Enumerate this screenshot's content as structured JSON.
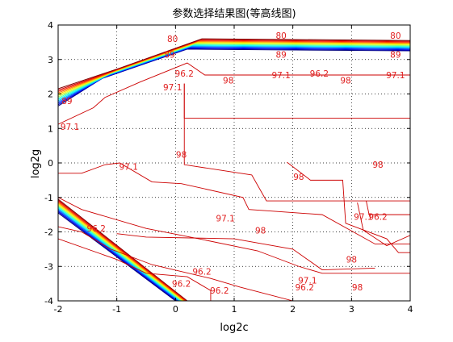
{
  "chart_data": {
    "type": "contour",
    "title": "参数选择结果图(等高线图)",
    "xlabel": "log2c",
    "ylabel": "log2g",
    "xlim": [
      -2,
      4
    ],
    "ylim": [
      -4,
      4
    ],
    "x_ticks": [
      -2,
      -1,
      0,
      1,
      2,
      3,
      4
    ],
    "y_ticks": [
      -4,
      -3,
      -2,
      -1,
      0,
      1,
      2,
      3,
      4
    ],
    "grid": true,
    "colormap": "jet",
    "label_color": "#e02020",
    "upper_band": {
      "levels": 14,
      "left_edge": [
        [
          -2.0,
          1.65
        ],
        [
          -2.0,
          2.15
        ]
      ],
      "ramp_top": [
        [
          -1.25,
          2.45
        ],
        [
          -0.95,
          2.75
        ]
      ],
      "knee": [
        [
          0.2,
          3.3
        ],
        [
          0.45,
          3.6
        ]
      ],
      "right_edge": [
        [
          4.0,
          3.25
        ],
        [
          4.0,
          3.55
        ]
      ]
    },
    "lower_band": {
      "levels": 14,
      "top_start": [
        -2.0,
        -1.05
      ],
      "top_end": [
        0.2,
        -4.0
      ],
      "bottom_start": [
        -2.0,
        -1.45
      ],
      "bottom_end": [
        0.0,
        -4.0
      ]
    },
    "contour_lines": [
      {
        "level": 97.1,
        "points": [
          [
            -2.0,
            1.12
          ],
          [
            -1.4,
            1.6
          ],
          [
            -1.2,
            1.9
          ],
          [
            -0.6,
            2.35
          ],
          [
            0.2,
            2.9
          ],
          [
            0.5,
            2.55
          ],
          [
            4.0,
            2.55
          ]
        ]
      },
      {
        "level": 98,
        "points": [
          [
            0.15,
            2.3
          ],
          [
            0.15,
            1.3
          ],
          [
            4.0,
            1.3
          ]
        ]
      },
      {
        "level": 98,
        "points": [
          [
            0.15,
            2.3
          ],
          [
            0.15,
            -0.05
          ],
          [
            1.3,
            -0.35
          ],
          [
            1.55,
            -1.1
          ],
          [
            4.0,
            -1.1
          ]
        ]
      },
      {
        "level": 97.1,
        "points": [
          [
            -2.0,
            -0.3
          ],
          [
            -1.6,
            -0.3
          ],
          [
            -1.2,
            -0.05
          ],
          [
            -0.95,
            0.0
          ],
          [
            -0.4,
            -0.55
          ],
          [
            0.1,
            -0.6
          ],
          [
            1.15,
            -1.0
          ],
          [
            1.25,
            -1.35
          ],
          [
            2.5,
            -1.5
          ],
          [
            3.4,
            -2.35
          ],
          [
            4.0,
            -2.35
          ]
        ]
      },
      {
        "level": 96.2,
        "points": [
          [
            -2.0,
            -1.0
          ],
          [
            -1.6,
            -1.35
          ],
          [
            -0.5,
            -1.9
          ],
          [
            0.4,
            -2.2
          ],
          [
            1.4,
            -2.55
          ],
          [
            2.1,
            -3.0
          ],
          [
            2.5,
            -3.2
          ],
          [
            4.0,
            -3.2
          ]
        ]
      },
      {
        "level": 97.1,
        "points": [
          [
            -1.0,
            -2.05
          ],
          [
            -0.5,
            -2.15
          ],
          [
            1.0,
            -2.2
          ],
          [
            2.0,
            -2.5
          ],
          [
            2.5,
            -3.1
          ],
          [
            3.4,
            -3.05
          ]
        ]
      },
      {
        "level": 98,
        "points": [
          [
            1.9,
            0.02
          ],
          [
            2.3,
            -0.5
          ],
          [
            2.85,
            -0.5
          ],
          [
            2.9,
            -1.75
          ],
          [
            3.6,
            -2.2
          ],
          [
            3.8,
            -2.6
          ],
          [
            4.0,
            -2.6
          ]
        ]
      },
      {
        "level": 96.2,
        "points": [
          [
            -2.0,
            -1.85
          ],
          [
            -1.6,
            -2.0
          ],
          [
            -1.1,
            -2.5
          ],
          [
            -0.4,
            -2.95
          ],
          [
            0.6,
            -3.35
          ],
          [
            1.1,
            -3.6
          ],
          [
            2.0,
            -4.0
          ]
        ]
      },
      {
        "level": 98,
        "points": [
          [
            -2.0,
            -2.2
          ],
          [
            -1.0,
            -2.8
          ],
          [
            -0.5,
            -3.2
          ],
          [
            0.2,
            -3.3
          ],
          [
            0.6,
            -3.7
          ],
          [
            0.6,
            -4.0
          ]
        ]
      },
      {
        "level": 96.2,
        "points": [
          [
            3.1,
            -1.15
          ],
          [
            3.2,
            -1.95
          ],
          [
            3.6,
            -2.4
          ],
          [
            4.0,
            -2.1
          ]
        ]
      },
      {
        "level": 98,
        "points": [
          [
            3.25,
            -1.1
          ],
          [
            3.3,
            -1.5
          ],
          [
            4.0,
            -1.5
          ]
        ]
      }
    ],
    "labels": [
      {
        "text": "89",
        "x": -1.85,
        "y": 1.8
      },
      {
        "text": "97.1",
        "x": -1.8,
        "y": 1.05
      },
      {
        "text": "89",
        "x": -0.1,
        "y": 3.15
      },
      {
        "text": "80",
        "x": -0.05,
        "y": 3.6
      },
      {
        "text": "97.1",
        "x": -0.05,
        "y": 2.2
      },
      {
        "text": "96.2",
        "x": 0.15,
        "y": 2.6
      },
      {
        "text": "80",
        "x": 1.8,
        "y": 3.7
      },
      {
        "text": "89",
        "x": 1.8,
        "y": 3.15
      },
      {
        "text": "98",
        "x": 0.9,
        "y": 2.4
      },
      {
        "text": "97.1",
        "x": 1.8,
        "y": 2.55
      },
      {
        "text": "96.2",
        "x": 2.45,
        "y": 2.6
      },
      {
        "text": "98",
        "x": 2.9,
        "y": 2.4
      },
      {
        "text": "80",
        "x": 3.75,
        "y": 3.7
      },
      {
        "text": "89",
        "x": 3.75,
        "y": 3.15
      },
      {
        "text": "97.1",
        "x": 3.75,
        "y": 2.55
      },
      {
        "text": "98",
        "x": 0.1,
        "y": 0.25
      },
      {
        "text": "97.1",
        "x": -0.8,
        "y": -0.1
      },
      {
        "text": "98",
        "x": 3.45,
        "y": -0.05
      },
      {
        "text": "98",
        "x": 2.1,
        "y": -0.4
      },
      {
        "text": "97.1",
        "x": 0.85,
        "y": -1.6
      },
      {
        "text": "98",
        "x": 1.45,
        "y": -1.95
      },
      {
        "text": "97.1",
        "x": 3.2,
        "y": -1.55
      },
      {
        "text": "96.2",
        "x": 3.45,
        "y": -1.55
      },
      {
        "text": "96.2",
        "x": -1.35,
        "y": -1.9
      },
      {
        "text": "96.2",
        "x": 0.45,
        "y": -3.15
      },
      {
        "text": "98",
        "x": 3.0,
        "y": -2.8
      },
      {
        "text": "97.1",
        "x": 2.25,
        "y": -3.4
      },
      {
        "text": "96.2",
        "x": 2.2,
        "y": -3.6
      },
      {
        "text": "96.2",
        "x": 0.75,
        "y": -3.7
      },
      {
        "text": "98",
        "x": 3.1,
        "y": -3.6
      },
      {
        "text": "96.2",
        "x": 0.1,
        "y": -3.5
      }
    ]
  }
}
